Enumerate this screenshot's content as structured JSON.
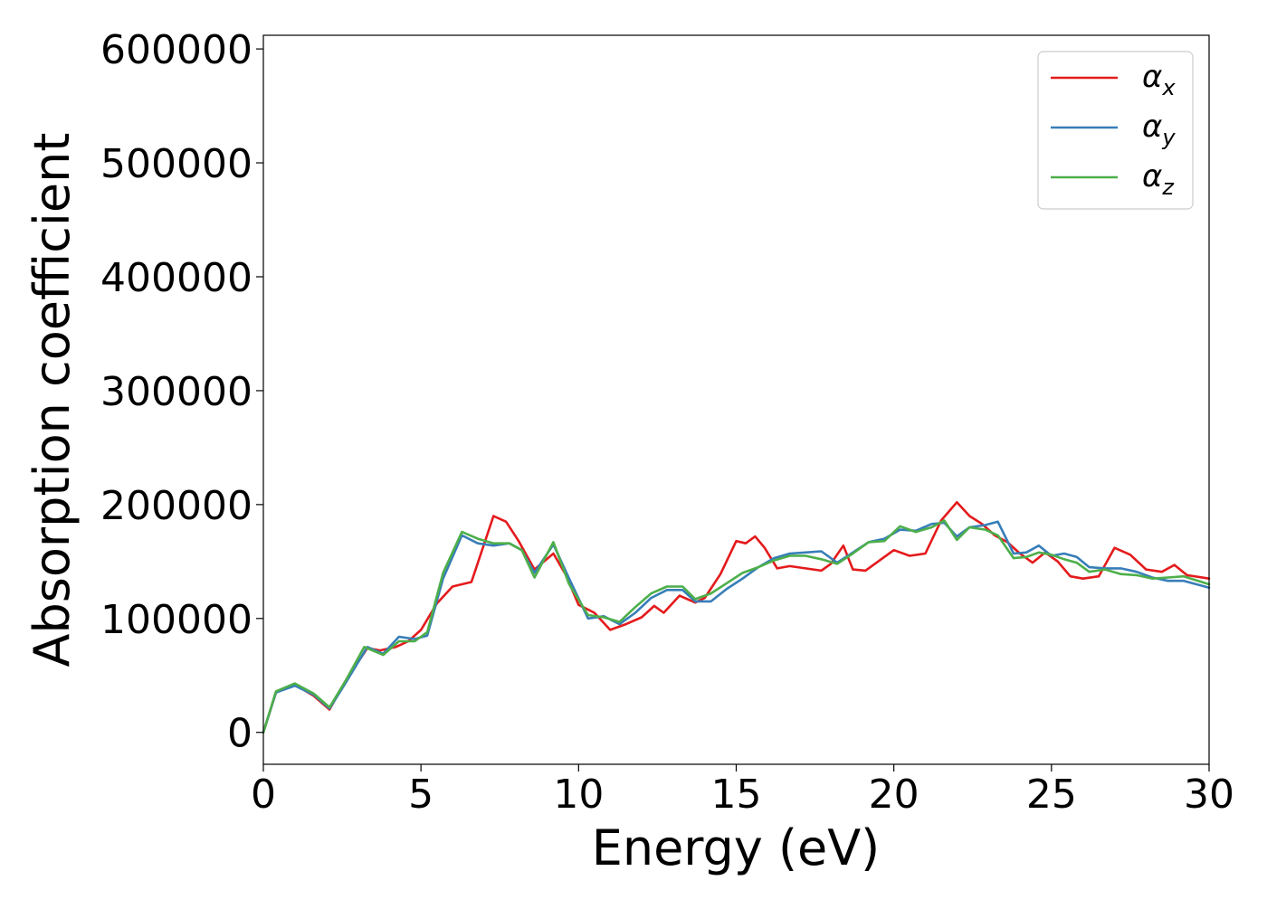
{
  "chart_data": {
    "type": "line",
    "title": "",
    "xlabel": "Energy (eV)",
    "ylabel": "Absorption coefficient",
    "xlim": [
      0,
      30
    ],
    "ylim": [
      -28000,
      612000
    ],
    "xticks": [
      0,
      5,
      10,
      15,
      20,
      25,
      30
    ],
    "xtick_labels": [
      "0",
      "5",
      "10",
      "15",
      "20",
      "25",
      "30"
    ],
    "yticks": [
      0,
      100000,
      200000,
      300000,
      400000,
      500000,
      600000
    ],
    "ytick_labels": [
      "0",
      "100000",
      "200000",
      "300000",
      "400000",
      "500000",
      "600000"
    ],
    "grid": false,
    "legend_position": "top-right",
    "series": [
      {
        "name": "α_x",
        "label_base": "α",
        "label_sub": "x",
        "color": "#e41a1c",
        "x": [
          0,
          0.4,
          1,
          1.6,
          2.1,
          2.6,
          3.3,
          3.7,
          4.2,
          4.6,
          5,
          5.5,
          6,
          6.6,
          7,
          7.3,
          7.7,
          8.1,
          8.6,
          9.2,
          9.6,
          10,
          10.5,
          11,
          11.5,
          12,
          12.4,
          12.7,
          13.2,
          13.7,
          14,
          14.5,
          15,
          15.3,
          15.6,
          15.9,
          16.3,
          16.7,
          17.2,
          17.7,
          18,
          18.4,
          18.7,
          19.1,
          19.6,
          20,
          20.5,
          21,
          21.5,
          22,
          22.4,
          22.8,
          23.2,
          23.6,
          24,
          24.4,
          24.8,
          25.2,
          25.6,
          26,
          26.5,
          27,
          27.5,
          28,
          28.5,
          28.9,
          29.3,
          30
        ],
        "y": [
          0,
          35000,
          42000,
          32000,
          20000,
          45000,
          74000,
          72000,
          75000,
          80000,
          90000,
          113000,
          128000,
          132000,
          165000,
          190000,
          185000,
          168000,
          143000,
          157000,
          138000,
          112000,
          105000,
          90000,
          95000,
          101000,
          111000,
          105000,
          120000,
          114000,
          118000,
          139000,
          168000,
          166000,
          172000,
          162000,
          144000,
          146000,
          144000,
          142000,
          148000,
          164000,
          143000,
          142000,
          152000,
          160000,
          155000,
          157000,
          186000,
          202000,
          190000,
          183000,
          173000,
          167000,
          157000,
          149000,
          158000,
          150000,
          137000,
          135000,
          137000,
          162000,
          156000,
          143000,
          141000,
          147000,
          138000,
          135000
        ]
      },
      {
        "name": "α_y",
        "label_base": "α",
        "label_sub": "y",
        "color": "#377eb8",
        "x": [
          0,
          0.4,
          1,
          1.6,
          2.1,
          2.6,
          3.3,
          3.8,
          4.3,
          4.8,
          5.2,
          5.7,
          6.3,
          6.8,
          7.3,
          7.8,
          8.2,
          8.6,
          9.2,
          9.7,
          10.3,
          10.8,
          11.3,
          11.8,
          12.3,
          12.8,
          13.3,
          13.7,
          14.2,
          14.7,
          15.2,
          15.7,
          16.2,
          16.7,
          17.2,
          17.7,
          18.2,
          18.7,
          19.2,
          19.7,
          20.2,
          20.7,
          21.2,
          21.6,
          22,
          22.4,
          22.9,
          23.3,
          23.8,
          24.2,
          24.6,
          25,
          25.4,
          25.8,
          26.2,
          26.7,
          27.2,
          27.7,
          28.2,
          28.7,
          29.2,
          30
        ],
        "y": [
          0,
          35000,
          41000,
          33000,
          21000,
          43000,
          75000,
          69000,
          84000,
          82000,
          85000,
          135000,
          173000,
          166000,
          164000,
          166000,
          160000,
          140000,
          165000,
          135000,
          100000,
          102000,
          95000,
          105000,
          118000,
          125000,
          125000,
          115000,
          115000,
          126000,
          135000,
          145000,
          153000,
          157000,
          158000,
          159000,
          149000,
          158000,
          167000,
          170000,
          178000,
          177000,
          183000,
          184000,
          172000,
          180000,
          182000,
          185000,
          157000,
          158000,
          164000,
          155000,
          157000,
          154000,
          145000,
          144000,
          144000,
          141000,
          136000,
          133000,
          133000,
          127000
        ]
      },
      {
        "name": "α_z",
        "label_base": "α",
        "label_sub": "z",
        "color": "#4daf4a",
        "x": [
          0,
          0.4,
          1,
          1.6,
          2.1,
          2.6,
          3.2,
          3.8,
          4.3,
          4.8,
          5.2,
          5.7,
          6.3,
          6.8,
          7.3,
          7.8,
          8.2,
          8.6,
          9.2,
          9.7,
          10.3,
          10.8,
          11.3,
          11.8,
          12.3,
          12.8,
          13.3,
          13.7,
          14.2,
          14.7,
          15.2,
          15.7,
          16.2,
          16.7,
          17.2,
          17.7,
          18.2,
          18.7,
          19.2,
          19.7,
          20.2,
          20.7,
          21.2,
          21.6,
          22,
          22.4,
          22.9,
          23.3,
          23.8,
          24.2,
          24.6,
          25,
          25.4,
          25.8,
          26.2,
          26.7,
          27.2,
          27.7,
          28.2,
          28.7,
          29.2,
          30
        ],
        "y": [
          0,
          36000,
          43000,
          34000,
          22000,
          45000,
          75000,
          68000,
          80000,
          80000,
          88000,
          140000,
          176000,
          170000,
          166000,
          166000,
          160000,
          136000,
          167000,
          130000,
          103000,
          101000,
          97000,
          110000,
          122000,
          128000,
          128000,
          117000,
          122000,
          131000,
          140000,
          145000,
          151000,
          155000,
          155000,
          152000,
          148000,
          157000,
          167000,
          168000,
          181000,
          176000,
          180000,
          186000,
          169000,
          180000,
          178000,
          173000,
          153000,
          154000,
          158000,
          156000,
          152000,
          149000,
          141000,
          143000,
          139000,
          138000,
          135000,
          136000,
          137000,
          130000
        ]
      }
    ]
  }
}
